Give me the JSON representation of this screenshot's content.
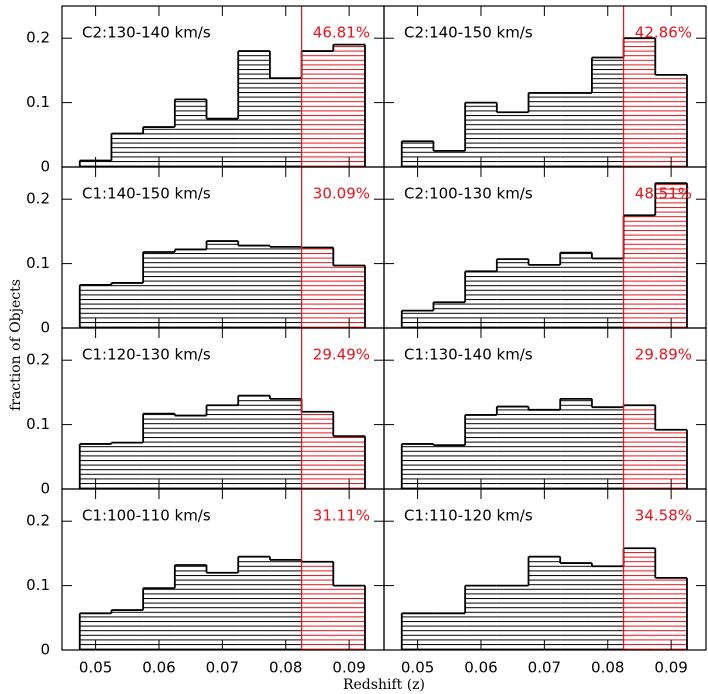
{
  "xlabel": "Redshift (z)",
  "ylabel": "fraction of Objects",
  "chart_data": [
    {
      "type": "histogram",
      "title": "C2:130-140 km/s",
      "annotation": "46.81%",
      "bins": [
        0.0475,
        0.0525,
        0.0575,
        0.0625,
        0.0675,
        0.0725,
        0.0775,
        0.0825,
        0.0875,
        0.0925
      ],
      "values": [
        0.01,
        0.052,
        0.062,
        0.105,
        0.075,
        0.18,
        0.138,
        0.18,
        0.19
      ],
      "xlim": [
        0.0447,
        0.0955
      ],
      "ylim": [
        0,
        0.25
      ],
      "xticks": [
        0.05,
        0.06,
        0.07,
        0.08,
        0.09
      ],
      "yticks": [
        0,
        0.1,
        0.2
      ],
      "cut_x": 0.0825,
      "color": "#000000",
      "cut_color": "#e8141a"
    },
    {
      "type": "histogram",
      "title": "C2:140-150 km/s",
      "annotation": "42.86%",
      "bins": [
        0.0475,
        0.0525,
        0.0575,
        0.0625,
        0.0675,
        0.0725,
        0.0775,
        0.0825,
        0.0875,
        0.0925
      ],
      "values": [
        0.04,
        0.025,
        0.1,
        0.085,
        0.115,
        0.115,
        0.17,
        0.2,
        0.143
      ],
      "xlim": [
        0.0447,
        0.0955
      ],
      "ylim": [
        0,
        0.25
      ],
      "xticks": [
        0.05,
        0.06,
        0.07,
        0.08,
        0.09
      ],
      "yticks": [
        0,
        0.1,
        0.2
      ],
      "cut_x": 0.0825,
      "color": "#000000",
      "cut_color": "#e8141a"
    },
    {
      "type": "histogram",
      "title": "C1:140-150 km/s",
      "annotation": "30.09%",
      "bins": [
        0.0475,
        0.0525,
        0.0575,
        0.0625,
        0.0675,
        0.0725,
        0.0775,
        0.0825,
        0.0875,
        0.0925
      ],
      "values": [
        0.067,
        0.07,
        0.118,
        0.122,
        0.135,
        0.128,
        0.126,
        0.125,
        0.097
      ],
      "xlim": [
        0.0447,
        0.0955
      ],
      "ylim": [
        0,
        0.25
      ],
      "xticks": [
        0.05,
        0.06,
        0.07,
        0.08,
        0.09
      ],
      "yticks": [
        0,
        0.1,
        0.2
      ],
      "cut_x": 0.0825,
      "color": "#000000",
      "cut_color": "#e8141a"
    },
    {
      "type": "histogram",
      "title": "C2:100-130 km/s",
      "annotation": "48.51%",
      "bins": [
        0.0475,
        0.0525,
        0.0575,
        0.0625,
        0.0675,
        0.0725,
        0.0775,
        0.0825,
        0.0875,
        0.0925
      ],
      "values": [
        0.027,
        0.04,
        0.088,
        0.107,
        0.098,
        0.117,
        0.108,
        0.175,
        0.225
      ],
      "xlim": [
        0.0447,
        0.0955
      ],
      "ylim": [
        0,
        0.25
      ],
      "xticks": [
        0.05,
        0.06,
        0.07,
        0.08,
        0.09
      ],
      "yticks": [
        0,
        0.1,
        0.2
      ],
      "cut_x": 0.0825,
      "color": "#000000",
      "cut_color": "#e8141a"
    },
    {
      "type": "histogram",
      "title": "C1:120-130 km/s",
      "annotation": "29.49%",
      "bins": [
        0.0475,
        0.0525,
        0.0575,
        0.0625,
        0.0675,
        0.0725,
        0.0775,
        0.0825,
        0.0875,
        0.0925
      ],
      "values": [
        0.07,
        0.072,
        0.117,
        0.114,
        0.13,
        0.145,
        0.14,
        0.12,
        0.082
      ],
      "xlim": [
        0.0447,
        0.0955
      ],
      "ylim": [
        0,
        0.25
      ],
      "xticks": [
        0.05,
        0.06,
        0.07,
        0.08,
        0.09
      ],
      "yticks": [
        0,
        0.1,
        0.2
      ],
      "cut_x": 0.0825,
      "color": "#000000",
      "cut_color": "#e8141a"
    },
    {
      "type": "histogram",
      "title": "C1:130-140 km/s",
      "annotation": "29.89%",
      "bins": [
        0.0475,
        0.0525,
        0.0575,
        0.0625,
        0.0675,
        0.0725,
        0.0775,
        0.0825,
        0.0875,
        0.0925
      ],
      "values": [
        0.07,
        0.068,
        0.115,
        0.128,
        0.123,
        0.14,
        0.127,
        0.13,
        0.092
      ],
      "xlim": [
        0.0447,
        0.0955
      ],
      "ylim": [
        0,
        0.25
      ],
      "xticks": [
        0.05,
        0.06,
        0.07,
        0.08,
        0.09
      ],
      "yticks": [
        0,
        0.1,
        0.2
      ],
      "cut_x": 0.0825,
      "color": "#000000",
      "cut_color": "#e8141a"
    },
    {
      "type": "histogram",
      "title": "C1:100-110 km/s",
      "annotation": "31.11%",
      "bins": [
        0.0475,
        0.0525,
        0.0575,
        0.0625,
        0.0675,
        0.0725,
        0.0775,
        0.0825,
        0.0875,
        0.0925
      ],
      "values": [
        0.057,
        0.062,
        0.096,
        0.132,
        0.12,
        0.145,
        0.14,
        0.137,
        0.1
      ],
      "xlim": [
        0.0447,
        0.0955
      ],
      "ylim": [
        0,
        0.25
      ],
      "xticks": [
        0.05,
        0.06,
        0.07,
        0.08,
        0.09
      ],
      "yticks": [
        0,
        0.1,
        0.2
      ],
      "cut_x": 0.0825,
      "color": "#000000",
      "cut_color": "#e8141a"
    },
    {
      "type": "histogram",
      "title": "C1:110-120 km/s",
      "annotation": "34.58%",
      "bins": [
        0.0475,
        0.0525,
        0.0575,
        0.0625,
        0.0675,
        0.0725,
        0.0775,
        0.0825,
        0.0875,
        0.0925
      ],
      "values": [
        0.057,
        0.057,
        0.1,
        0.1,
        0.145,
        0.135,
        0.13,
        0.158,
        0.112
      ],
      "xlim": [
        0.0447,
        0.0955
      ],
      "ylim": [
        0,
        0.25
      ],
      "xticks": [
        0.05,
        0.06,
        0.07,
        0.08,
        0.09
      ],
      "yticks": [
        0,
        0.1,
        0.2
      ],
      "cut_x": 0.0825,
      "color": "#000000",
      "cut_color": "#e8141a"
    }
  ]
}
